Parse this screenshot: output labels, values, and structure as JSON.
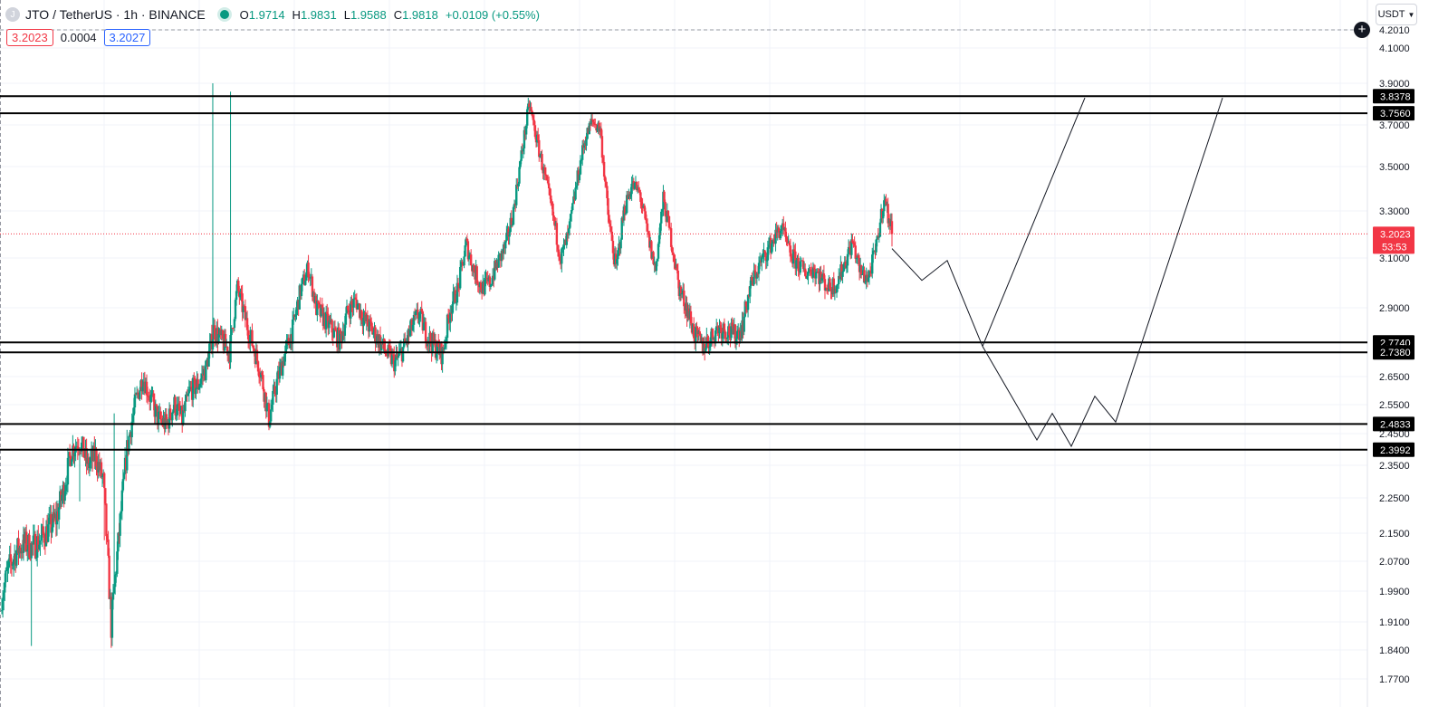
{
  "header": {
    "symbol_icon": "J",
    "title": "JTO / TetherUS · 1h · BINANCE",
    "ohlc": [
      {
        "label": "O",
        "value": "1.9714"
      },
      {
        "label": "H",
        "value": "1.9831"
      },
      {
        "label": "L",
        "value": "1.9588"
      },
      {
        "label": "C",
        "value": "1.9818"
      },
      {
        "label": "",
        "value": "+0.0109 (+0.55%)"
      }
    ]
  },
  "quotes": {
    "sell": "3.2023",
    "spread": "0.0004",
    "buy": "3.2027"
  },
  "currency": "USDT",
  "colors": {
    "up": "#089981",
    "down": "#f23645",
    "text": "#131722",
    "grid": "#f0f3fa"
  },
  "icons": {
    "add": "plus-circle-icon",
    "chevron": "chevron-down-icon",
    "status": "market-open-dot-icon"
  },
  "price_label": {
    "price": "3.2023",
    "countdown": "53:53"
  },
  "chart_data": {
    "type": "candlestick",
    "symbol": "JTO / TetherUS",
    "interval": "1h",
    "ylim": [
      1.75,
      4.22
    ],
    "y_ticks": [
      "4.2010",
      "4.1000",
      "3.9000",
      "3.7000",
      "3.5000",
      "3.3000",
      "3.1000",
      "2.9000",
      "2.6500",
      "2.5500",
      "2.4500",
      "2.3500",
      "2.2500",
      "2.1500",
      "2.0700",
      "1.9900",
      "1.9100",
      "1.8400",
      "1.7700"
    ],
    "levels": [
      "3.8378",
      "3.7560",
      "2.7740",
      "2.7380",
      "2.4833",
      "2.3992"
    ],
    "current_price": 3.2023,
    "closes": [
      1.97,
      2.05,
      2.1,
      2.12,
      2.11,
      2.13,
      2.16,
      2.19,
      2.28,
      2.4,
      2.43,
      2.35,
      2.38,
      2.3,
      1.9,
      2.15,
      2.4,
      2.55,
      2.65,
      2.57,
      2.5,
      2.48,
      2.55,
      2.5,
      2.6,
      2.62,
      2.68,
      2.82,
      2.78,
      2.74,
      2.98,
      2.86,
      2.76,
      2.66,
      2.5,
      2.63,
      2.73,
      2.82,
      2.97,
      3.06,
      2.9,
      2.86,
      2.82,
      2.78,
      2.89,
      2.93,
      2.86,
      2.82,
      2.78,
      2.73,
      2.7,
      2.75,
      2.82,
      2.88,
      2.8,
      2.76,
      2.73,
      2.9,
      2.98,
      3.16,
      3.05,
      2.98,
      3.0,
      3.08,
      3.15,
      3.3,
      3.55,
      3.8,
      3.62,
      3.45,
      3.28,
      3.1,
      3.2,
      3.42,
      3.62,
      3.72,
      3.68,
      3.28,
      3.05,
      3.3,
      3.42,
      3.38,
      3.2,
      3.05,
      3.35,
      3.18,
      2.98,
      2.9,
      2.8,
      2.76,
      2.79,
      2.83,
      2.82,
      2.8,
      2.83,
      2.98,
      3.06,
      3.12,
      3.18,
      3.23,
      3.12,
      3.08,
      3.04,
      3.06,
      3.02,
      2.98,
      3.0,
      3.08,
      3.17,
      3.04,
      3.02,
      3.14,
      3.36,
      3.2023
    ]
  }
}
